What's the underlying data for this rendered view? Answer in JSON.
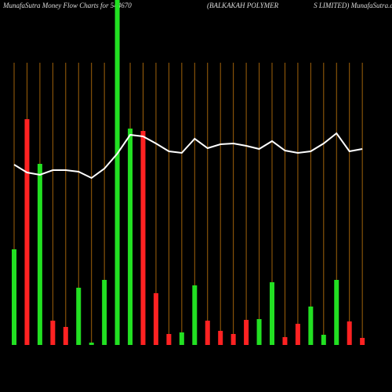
{
  "chart_data": {
    "type": "bar",
    "title": "MunafaSutra  Money Flow  Charts for 544670",
    "subtitle": "(BALKAKAH POLYMER                    S LIMITED) MunafaSutra.com",
    "categories": [
      null,
      null,
      null,
      null,
      null,
      null,
      null,
      null,
      null,
      null,
      null,
      null,
      null,
      null,
      null,
      null,
      null,
      null,
      null,
      null,
      null,
      null,
      null,
      null,
      null,
      null,
      null,
      null
    ],
    "values": [
      122,
      288,
      231,
      31,
      23,
      73,
      3,
      83,
      440,
      276,
      273,
      66,
      14,
      16,
      76,
      31,
      18,
      14,
      32,
      33,
      80,
      10,
      27,
      49,
      13,
      83,
      30,
      9
    ],
    "colors": [
      "#22e022",
      "#ff2222",
      "#22e022",
      "#ff2222",
      "#ff2222",
      "#22e022",
      "#22e022",
      "#22e022",
      "#22e022",
      "#22e022",
      "#ff2222",
      "#ff2222",
      "#ff2222",
      "#22e022",
      "#22e022",
      "#ff2222",
      "#ff2222",
      "#ff2222",
      "#ff2222",
      "#22e022",
      "#22e022",
      "#ff2222",
      "#ff2222",
      "#22e022",
      "#22e022",
      "#22e022",
      "#ff2222",
      "#ff2222"
    ],
    "line": {
      "color": "#ffffff",
      "values": [
        230,
        220,
        217,
        223,
        223,
        221,
        213,
        225,
        244,
        268,
        266,
        257,
        247,
        245,
        263,
        251,
        256,
        257,
        254,
        250,
        260,
        248,
        245,
        247,
        257,
        270,
        247,
        250
      ]
    },
    "ylim": [
      0,
      440
    ],
    "guide_color": "#a0620a"
  }
}
